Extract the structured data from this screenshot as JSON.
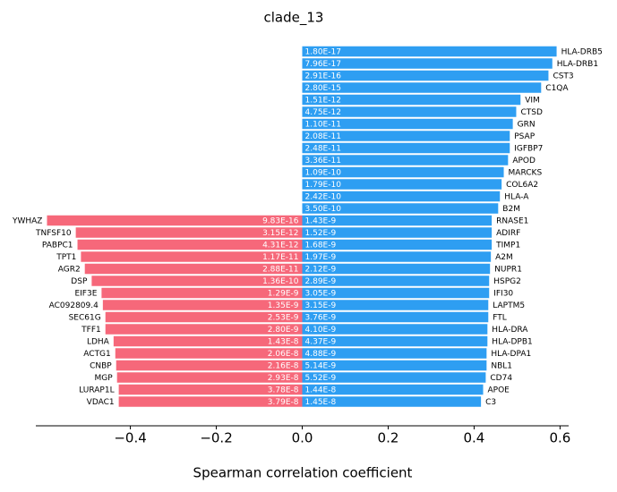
{
  "chart_data": {
    "type": "diverging-bar",
    "title": "clade_13",
    "xlabel": "Spearman correlation coefficient",
    "xlim": [
      -0.62,
      0.62
    ],
    "xticks": [
      {
        "value": -0.4,
        "label": "−0.4"
      },
      {
        "value": -0.2,
        "label": "−0.2"
      },
      {
        "value": 0,
        "label": "0.0"
      },
      {
        "value": 0.2,
        "label": "0.2"
      },
      {
        "value": 0.4,
        "label": "0.4"
      },
      {
        "value": 0.6,
        "label": "0.6"
      }
    ],
    "series": [
      {
        "color": "#2e9ef2",
        "categories": [
          "HLA-DRB5",
          "HLA-DRB1",
          "CST3",
          "C1QA",
          "VIM",
          "CTSD",
          "GRN",
          "PSAP",
          "IGFBP7",
          "APOD",
          "MARCKS",
          "COL6A2",
          "HLA-A",
          "B2M",
          "RNASE1",
          "ADIRF",
          "TIMP1",
          "A2M",
          "NUPR1",
          "HSPG2",
          "IFI30",
          "LAPTM5",
          "FTL",
          "HLA-DRA",
          "HLA-DPB1",
          "HLA-DPA1",
          "NBL1",
          "CD74",
          "APOE",
          "C3"
        ],
        "values": [
          0.592,
          0.582,
          0.573,
          0.556,
          0.508,
          0.498,
          0.49,
          0.483,
          0.483,
          0.479,
          0.469,
          0.464,
          0.46,
          0.456,
          0.441,
          0.441,
          0.441,
          0.439,
          0.437,
          0.435,
          0.435,
          0.433,
          0.433,
          0.431,
          0.431,
          0.429,
          0.429,
          0.427,
          0.421,
          0.416
        ],
        "pvalues": [
          "1.80E-17",
          "7.96E-17",
          "2.91E-16",
          "2.80E-15",
          "1.51E-12",
          "4.75E-12",
          "1.10E-11",
          "2.08E-11",
          "2.48E-11",
          "3.36E-11",
          "1.09E-10",
          "1.79E-10",
          "2.42E-10",
          "3.50E-10",
          "1.43E-9",
          "1.52E-9",
          "1.68E-9",
          "1.97E-9",
          "2.12E-9",
          "2.89E-9",
          "3.05E-9",
          "3.15E-9",
          "3.76E-9",
          "4.10E-9",
          "4.37E-9",
          "4.88E-9",
          "5.14E-9",
          "5.52E-9",
          "1.44E-8",
          "1.45E-8"
        ]
      },
      {
        "color": "#f6687a",
        "categories": [
          "YWHAZ",
          "TNFSF10",
          "PABPC1",
          "TPT1",
          "AGR2",
          "DSP",
          "EIF3E",
          "AC092809.4",
          "SEC61G",
          "TFF1",
          "LDHA",
          "ACTG1",
          "CNBP",
          "MGP",
          "LURAP1L",
          "VDAC1"
        ],
        "values": [
          -0.594,
          -0.527,
          -0.523,
          -0.515,
          -0.506,
          -0.49,
          -0.467,
          -0.464,
          -0.458,
          -0.458,
          -0.439,
          -0.435,
          -0.433,
          -0.431,
          -0.427,
          -0.427
        ],
        "pvalues": [
          "9.83E-16",
          "3.15E-12",
          "4.31E-12",
          "1.17E-11",
          "2.88E-11",
          "1.36E-10",
          "1.29E-9",
          "1.35E-9",
          "2.53E-9",
          "2.80E-9",
          "1.43E-8",
          "2.06E-8",
          "2.16E-8",
          "2.93E-8",
          "3.78E-8",
          "3.79E-8"
        ]
      }
    ]
  }
}
